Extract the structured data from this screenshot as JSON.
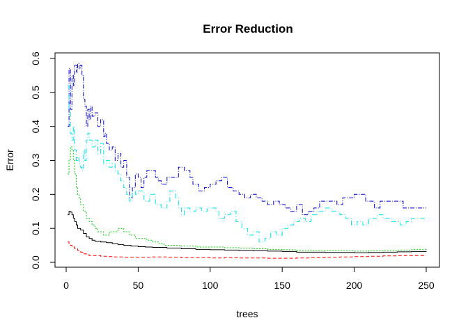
{
  "chart_data": {
    "type": "line",
    "title": "Error Reduction",
    "xlabel": "trees",
    "ylabel": "Error",
    "xlim": [
      0,
      250
    ],
    "ylim": [
      0,
      0.6
    ],
    "xticks": [
      0,
      50,
      100,
      150,
      200,
      250
    ],
    "xtick_labels": [
      "0",
      "50",
      "100",
      "150",
      "200",
      "250"
    ],
    "yticks": [
      0.0,
      0.1,
      0.2,
      0.3,
      0.4,
      0.5,
      0.6
    ],
    "ytick_labels": [
      "0.0",
      "0.1",
      "0.2",
      "0.3",
      "0.4",
      "0.5",
      "0.6"
    ],
    "grid": false,
    "legend": "none",
    "series": [
      {
        "color": "#0000cd",
        "dash": "6 2 1 2",
        "points": [
          [
            1,
            0.4
          ],
          [
            2,
            0.57
          ],
          [
            3,
            0.45
          ],
          [
            4,
            0.55
          ],
          [
            5,
            0.52
          ],
          [
            6,
            0.58
          ],
          [
            7,
            0.56
          ],
          [
            8,
            0.585
          ],
          [
            9,
            0.57
          ],
          [
            10,
            0.58
          ],
          [
            11,
            0.55
          ],
          [
            12,
            0.48
          ],
          [
            13,
            0.46
          ],
          [
            14,
            0.4
          ],
          [
            15,
            0.45
          ],
          [
            16,
            0.42
          ],
          [
            17,
            0.46
          ],
          [
            18,
            0.43
          ],
          [
            20,
            0.44
          ],
          [
            22,
            0.4
          ],
          [
            24,
            0.42
          ],
          [
            26,
            0.37
          ],
          [
            27,
            0.38
          ],
          [
            28,
            0.35
          ],
          [
            30,
            0.33
          ],
          [
            32,
            0.34
          ],
          [
            34,
            0.3
          ],
          [
            36,
            0.32
          ],
          [
            38,
            0.28
          ],
          [
            40,
            0.3
          ],
          [
            42,
            0.25
          ],
          [
            44,
            0.19
          ],
          [
            46,
            0.22
          ],
          [
            48,
            0.26
          ],
          [
            50,
            0.25
          ],
          [
            52,
            0.22
          ],
          [
            54,
            0.25
          ],
          [
            56,
            0.27
          ],
          [
            60,
            0.27
          ],
          [
            62,
            0.25
          ],
          [
            64,
            0.24
          ],
          [
            66,
            0.23
          ],
          [
            70,
            0.25
          ],
          [
            74,
            0.25
          ],
          [
            78,
            0.28
          ],
          [
            82,
            0.27
          ],
          [
            86,
            0.25
          ],
          [
            88,
            0.23
          ],
          [
            92,
            0.21
          ],
          [
            96,
            0.22
          ],
          [
            100,
            0.23
          ],
          [
            104,
            0.24
          ],
          [
            108,
            0.25
          ],
          [
            112,
            0.22
          ],
          [
            116,
            0.21
          ],
          [
            120,
            0.2
          ],
          [
            124,
            0.19
          ],
          [
            128,
            0.2
          ],
          [
            132,
            0.19
          ],
          [
            136,
            0.18
          ],
          [
            140,
            0.17
          ],
          [
            144,
            0.18
          ],
          [
            148,
            0.17
          ],
          [
            152,
            0.16
          ],
          [
            156,
            0.15
          ],
          [
            160,
            0.17
          ],
          [
            164,
            0.14
          ],
          [
            168,
            0.15
          ],
          [
            172,
            0.16
          ],
          [
            176,
            0.18
          ],
          [
            184,
            0.18
          ],
          [
            188,
            0.17
          ],
          [
            192,
            0.19
          ],
          [
            200,
            0.2
          ],
          [
            208,
            0.18
          ],
          [
            214,
            0.16
          ],
          [
            218,
            0.18
          ],
          [
            230,
            0.18
          ],
          [
            234,
            0.16
          ],
          [
            250,
            0.16
          ]
        ]
      },
      {
        "color": "#00e5ee",
        "dash": "7 3 1 3",
        "points": [
          [
            1,
            0.52
          ],
          [
            2,
            0.45
          ],
          [
            3,
            0.38
          ],
          [
            4,
            0.36
          ],
          [
            5,
            0.4
          ],
          [
            6,
            0.33
          ],
          [
            7,
            0.3
          ],
          [
            8,
            0.31
          ],
          [
            9,
            0.29
          ],
          [
            10,
            0.28
          ],
          [
            11,
            0.27
          ],
          [
            12,
            0.33
          ],
          [
            13,
            0.3
          ],
          [
            14,
            0.36
          ],
          [
            15,
            0.38
          ],
          [
            16,
            0.36
          ],
          [
            18,
            0.34
          ],
          [
            20,
            0.36
          ],
          [
            22,
            0.32
          ],
          [
            24,
            0.35
          ],
          [
            26,
            0.29
          ],
          [
            28,
            0.3
          ],
          [
            30,
            0.28
          ],
          [
            32,
            0.29
          ],
          [
            34,
            0.27
          ],
          [
            36,
            0.26
          ],
          [
            38,
            0.24
          ],
          [
            40,
            0.22
          ],
          [
            42,
            0.2
          ],
          [
            44,
            0.18
          ],
          [
            46,
            0.21
          ],
          [
            48,
            0.2
          ],
          [
            50,
            0.21
          ],
          [
            54,
            0.18
          ],
          [
            58,
            0.2
          ],
          [
            62,
            0.17
          ],
          [
            66,
            0.16
          ],
          [
            70,
            0.18
          ],
          [
            72,
            0.21
          ],
          [
            76,
            0.19
          ],
          [
            78,
            0.16
          ],
          [
            80,
            0.14
          ],
          [
            82,
            0.16
          ],
          [
            86,
            0.15
          ],
          [
            90,
            0.16
          ],
          [
            94,
            0.15
          ],
          [
            98,
            0.16
          ],
          [
            104,
            0.15
          ],
          [
            106,
            0.13
          ],
          [
            110,
            0.14
          ],
          [
            114,
            0.15
          ],
          [
            118,
            0.12
          ],
          [
            122,
            0.1
          ],
          [
            126,
            0.08
          ],
          [
            130,
            0.09
          ],
          [
            134,
            0.06
          ],
          [
            138,
            0.07
          ],
          [
            142,
            0.09
          ],
          [
            146,
            0.08
          ],
          [
            150,
            0.1
          ],
          [
            154,
            0.11
          ],
          [
            158,
            0.12
          ],
          [
            162,
            0.13
          ],
          [
            166,
            0.12
          ],
          [
            170,
            0.14
          ],
          [
            174,
            0.15
          ],
          [
            180,
            0.16
          ],
          [
            184,
            0.15
          ],
          [
            190,
            0.14
          ],
          [
            194,
            0.13
          ],
          [
            198,
            0.11
          ],
          [
            202,
            0.12
          ],
          [
            206,
            0.11
          ],
          [
            210,
            0.13
          ],
          [
            216,
            0.14
          ],
          [
            220,
            0.13
          ],
          [
            226,
            0.12
          ],
          [
            232,
            0.11
          ],
          [
            236,
            0.12
          ],
          [
            240,
            0.13
          ],
          [
            250,
            0.13
          ]
        ]
      },
      {
        "color": "#00cd00",
        "dash": "2 2",
        "points": [
          [
            1,
            0.26
          ],
          [
            2,
            0.3
          ],
          [
            3,
            0.34
          ],
          [
            4,
            0.33
          ],
          [
            5,
            0.3
          ],
          [
            6,
            0.26
          ],
          [
            7,
            0.22
          ],
          [
            8,
            0.2
          ],
          [
            9,
            0.19
          ],
          [
            10,
            0.17
          ],
          [
            12,
            0.15
          ],
          [
            14,
            0.13
          ],
          [
            16,
            0.12
          ],
          [
            18,
            0.11
          ],
          [
            20,
            0.1
          ],
          [
            22,
            0.09
          ],
          [
            24,
            0.09
          ],
          [
            26,
            0.08
          ],
          [
            28,
            0.08
          ],
          [
            30,
            0.09
          ],
          [
            34,
            0.09
          ],
          [
            36,
            0.1
          ],
          [
            40,
            0.09
          ],
          [
            44,
            0.08
          ],
          [
            48,
            0.07
          ],
          [
            52,
            0.07
          ],
          [
            56,
            0.065
          ],
          [
            60,
            0.06
          ],
          [
            64,
            0.055
          ],
          [
            68,
            0.05
          ],
          [
            72,
            0.05
          ],
          [
            80,
            0.048
          ],
          [
            90,
            0.045
          ],
          [
            100,
            0.045
          ],
          [
            110,
            0.043
          ],
          [
            120,
            0.042
          ],
          [
            130,
            0.04
          ],
          [
            140,
            0.038
          ],
          [
            150,
            0.037
          ],
          [
            160,
            0.035
          ],
          [
            170,
            0.034
          ],
          [
            180,
            0.034
          ],
          [
            190,
            0.034
          ],
          [
            200,
            0.033
          ],
          [
            210,
            0.034
          ],
          [
            220,
            0.035
          ],
          [
            230,
            0.036
          ],
          [
            240,
            0.038
          ],
          [
            250,
            0.04
          ]
        ]
      },
      {
        "color": "#000000",
        "dash": "",
        "points": [
          [
            1,
            0.14
          ],
          [
            2,
            0.15
          ],
          [
            3,
            0.148
          ],
          [
            4,
            0.14
          ],
          [
            5,
            0.13
          ],
          [
            6,
            0.12
          ],
          [
            7,
            0.11
          ],
          [
            8,
            0.1
          ],
          [
            10,
            0.095
          ],
          [
            12,
            0.085
          ],
          [
            14,
            0.075
          ],
          [
            16,
            0.07
          ],
          [
            18,
            0.065
          ],
          [
            20,
            0.062
          ],
          [
            24,
            0.06
          ],
          [
            28,
            0.058
          ],
          [
            32,
            0.055
          ],
          [
            36,
            0.052
          ],
          [
            40,
            0.05
          ],
          [
            45,
            0.048
          ],
          [
            50,
            0.046
          ],
          [
            55,
            0.045
          ],
          [
            60,
            0.044
          ],
          [
            70,
            0.042
          ],
          [
            80,
            0.04
          ],
          [
            90,
            0.038
          ],
          [
            100,
            0.037
          ],
          [
            110,
            0.036
          ],
          [
            120,
            0.035
          ],
          [
            130,
            0.034
          ],
          [
            140,
            0.033
          ],
          [
            150,
            0.032
          ],
          [
            160,
            0.03
          ],
          [
            170,
            0.03
          ],
          [
            180,
            0.029
          ],
          [
            190,
            0.029
          ],
          [
            200,
            0.028
          ],
          [
            210,
            0.029
          ],
          [
            220,
            0.03
          ],
          [
            230,
            0.031
          ],
          [
            240,
            0.032
          ],
          [
            250,
            0.033
          ]
        ]
      },
      {
        "color": "#ff0000",
        "dash": "5 3",
        "points": [
          [
            1,
            0.06
          ],
          [
            2,
            0.055
          ],
          [
            3,
            0.05
          ],
          [
            4,
            0.048
          ],
          [
            5,
            0.045
          ],
          [
            6,
            0.04
          ],
          [
            8,
            0.035
          ],
          [
            10,
            0.03
          ],
          [
            12,
            0.025
          ],
          [
            14,
            0.022
          ],
          [
            16,
            0.02
          ],
          [
            20,
            0.02
          ],
          [
            24,
            0.018
          ],
          [
            28,
            0.017
          ],
          [
            32,
            0.016
          ],
          [
            40,
            0.015
          ],
          [
            50,
            0.015
          ],
          [
            60,
            0.016
          ],
          [
            70,
            0.015
          ],
          [
            80,
            0.014
          ],
          [
            90,
            0.014
          ],
          [
            100,
            0.013
          ],
          [
            110,
            0.014
          ],
          [
            120,
            0.013
          ],
          [
            130,
            0.013
          ],
          [
            140,
            0.012
          ],
          [
            150,
            0.012
          ],
          [
            160,
            0.013
          ],
          [
            170,
            0.014
          ],
          [
            180,
            0.015
          ],
          [
            190,
            0.016
          ],
          [
            200,
            0.017
          ],
          [
            210,
            0.018
          ],
          [
            220,
            0.019
          ],
          [
            230,
            0.02
          ],
          [
            240,
            0.02
          ],
          [
            250,
            0.02
          ]
        ]
      }
    ]
  }
}
